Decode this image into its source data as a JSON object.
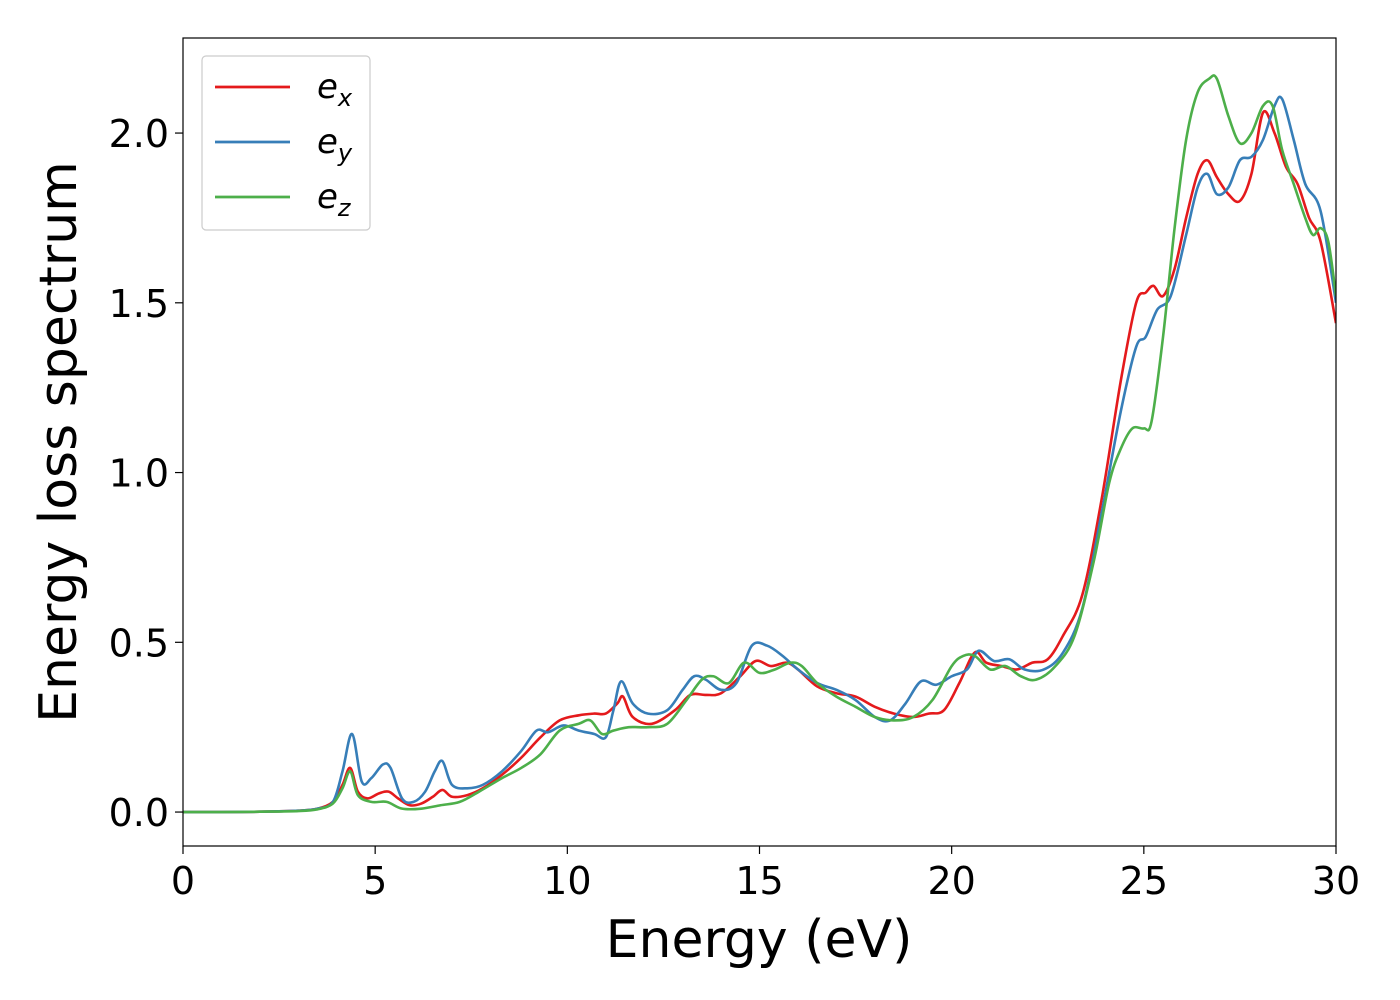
{
  "chart_data": {
    "type": "line",
    "title": "",
    "xlabel": "Energy (eV)",
    "ylabel": "Energy loss spectrum",
    "xlim": [
      0,
      30
    ],
    "ylim": [
      -0.1,
      2.28
    ],
    "xticks": [
      0,
      5,
      10,
      15,
      20,
      25,
      30
    ],
    "xtick_labels": [
      "0",
      "5",
      "10",
      "15",
      "20",
      "25",
      "30"
    ],
    "yticks": [
      0.0,
      0.5,
      1.0,
      1.5,
      2.0
    ],
    "ytick_labels": [
      "0.0",
      "0.5",
      "1.0",
      "1.5",
      "2.0"
    ],
    "grid": false,
    "legend_position": "top-left",
    "series": [
      {
        "name": "e",
        "subscript": "x",
        "color": "#e41a1c",
        "points": [
          [
            0,
            0.0
          ],
          [
            1,
            0.0
          ],
          [
            2,
            0.001
          ],
          [
            3,
            0.004
          ],
          [
            3.5,
            0.01
          ],
          [
            3.9,
            0.03
          ],
          [
            4.15,
            0.08
          ],
          [
            4.35,
            0.13
          ],
          [
            4.55,
            0.06
          ],
          [
            4.8,
            0.04
          ],
          [
            5.1,
            0.055
          ],
          [
            5.35,
            0.06
          ],
          [
            5.6,
            0.04
          ],
          [
            5.9,
            0.02
          ],
          [
            6.2,
            0.025
          ],
          [
            6.5,
            0.045
          ],
          [
            6.75,
            0.065
          ],
          [
            7.0,
            0.045
          ],
          [
            7.4,
            0.05
          ],
          [
            7.8,
            0.07
          ],
          [
            8.3,
            0.11
          ],
          [
            8.8,
            0.16
          ],
          [
            9.3,
            0.22
          ],
          [
            9.8,
            0.27
          ],
          [
            10.3,
            0.285
          ],
          [
            10.7,
            0.29
          ],
          [
            11.0,
            0.29
          ],
          [
            11.3,
            0.32
          ],
          [
            11.45,
            0.34
          ],
          [
            11.7,
            0.28
          ],
          [
            12.2,
            0.26
          ],
          [
            12.8,
            0.3
          ],
          [
            13.2,
            0.345
          ],
          [
            13.6,
            0.345
          ],
          [
            14.0,
            0.35
          ],
          [
            14.5,
            0.4
          ],
          [
            14.9,
            0.445
          ],
          [
            15.3,
            0.43
          ],
          [
            15.7,
            0.44
          ],
          [
            16.0,
            0.42
          ],
          [
            16.5,
            0.37
          ],
          [
            17.0,
            0.35
          ],
          [
            17.5,
            0.34
          ],
          [
            18.0,
            0.31
          ],
          [
            18.5,
            0.29
          ],
          [
            19.0,
            0.28
          ],
          [
            19.4,
            0.29
          ],
          [
            19.8,
            0.3
          ],
          [
            20.2,
            0.38
          ],
          [
            20.6,
            0.47
          ],
          [
            20.9,
            0.44
          ],
          [
            21.3,
            0.43
          ],
          [
            21.7,
            0.42
          ],
          [
            22.1,
            0.44
          ],
          [
            22.5,
            0.45
          ],
          [
            22.9,
            0.52
          ],
          [
            23.4,
            0.64
          ],
          [
            23.9,
            0.92
          ],
          [
            24.4,
            1.27
          ],
          [
            24.8,
            1.5
          ],
          [
            25.05,
            1.53
          ],
          [
            25.25,
            1.55
          ],
          [
            25.5,
            1.52
          ],
          [
            25.8,
            1.6
          ],
          [
            26.1,
            1.75
          ],
          [
            26.4,
            1.88
          ],
          [
            26.65,
            1.92
          ],
          [
            26.9,
            1.87
          ],
          [
            27.2,
            1.82
          ],
          [
            27.5,
            1.8
          ],
          [
            27.8,
            1.88
          ],
          [
            28.1,
            2.06
          ],
          [
            28.4,
            2.0
          ],
          [
            28.7,
            1.9
          ],
          [
            29.0,
            1.85
          ],
          [
            29.3,
            1.75
          ],
          [
            29.6,
            1.68
          ],
          [
            30.0,
            1.44
          ]
        ]
      },
      {
        "name": "e",
        "subscript": "y",
        "color": "#377eb8",
        "points": [
          [
            0,
            0.0
          ],
          [
            1,
            0.0
          ],
          [
            2,
            0.001
          ],
          [
            3,
            0.004
          ],
          [
            3.5,
            0.01
          ],
          [
            3.9,
            0.03
          ],
          [
            4.15,
            0.12
          ],
          [
            4.4,
            0.23
          ],
          [
            4.65,
            0.09
          ],
          [
            4.9,
            0.1
          ],
          [
            5.2,
            0.14
          ],
          [
            5.4,
            0.13
          ],
          [
            5.7,
            0.04
          ],
          [
            6.0,
            0.03
          ],
          [
            6.3,
            0.06
          ],
          [
            6.55,
            0.12
          ],
          [
            6.75,
            0.15
          ],
          [
            7.0,
            0.08
          ],
          [
            7.4,
            0.07
          ],
          [
            7.8,
            0.08
          ],
          [
            8.3,
            0.12
          ],
          [
            8.8,
            0.18
          ],
          [
            9.2,
            0.24
          ],
          [
            9.5,
            0.235
          ],
          [
            9.9,
            0.255
          ],
          [
            10.3,
            0.24
          ],
          [
            10.7,
            0.23
          ],
          [
            11.0,
            0.22
          ],
          [
            11.2,
            0.3
          ],
          [
            11.4,
            0.385
          ],
          [
            11.7,
            0.32
          ],
          [
            12.1,
            0.29
          ],
          [
            12.6,
            0.3
          ],
          [
            13.0,
            0.36
          ],
          [
            13.3,
            0.4
          ],
          [
            13.6,
            0.39
          ],
          [
            14.0,
            0.36
          ],
          [
            14.4,
            0.38
          ],
          [
            14.8,
            0.49
          ],
          [
            15.2,
            0.49
          ],
          [
            15.6,
            0.46
          ],
          [
            16.0,
            0.42
          ],
          [
            16.5,
            0.38
          ],
          [
            17.0,
            0.36
          ],
          [
            17.5,
            0.33
          ],
          [
            18.0,
            0.28
          ],
          [
            18.4,
            0.27
          ],
          [
            18.8,
            0.32
          ],
          [
            19.2,
            0.385
          ],
          [
            19.6,
            0.375
          ],
          [
            20.0,
            0.4
          ],
          [
            20.4,
            0.42
          ],
          [
            20.7,
            0.475
          ],
          [
            21.1,
            0.445
          ],
          [
            21.5,
            0.45
          ],
          [
            21.9,
            0.42
          ],
          [
            22.4,
            0.42
          ],
          [
            22.9,
            0.47
          ],
          [
            23.4,
            0.6
          ],
          [
            23.9,
            0.88
          ],
          [
            24.4,
            1.18
          ],
          [
            24.8,
            1.37
          ],
          [
            25.05,
            1.4
          ],
          [
            25.35,
            1.48
          ],
          [
            25.7,
            1.52
          ],
          [
            26.1,
            1.7
          ],
          [
            26.4,
            1.84
          ],
          [
            26.65,
            1.88
          ],
          [
            26.9,
            1.82
          ],
          [
            27.2,
            1.84
          ],
          [
            27.5,
            1.92
          ],
          [
            27.8,
            1.93
          ],
          [
            28.1,
            1.98
          ],
          [
            28.4,
            2.08
          ],
          [
            28.6,
            2.1
          ],
          [
            28.9,
            1.98
          ],
          [
            29.2,
            1.85
          ],
          [
            29.6,
            1.77
          ],
          [
            30.0,
            1.5
          ]
        ]
      },
      {
        "name": "e",
        "subscript": "z",
        "color": "#4daf4a",
        "points": [
          [
            0,
            0.0
          ],
          [
            1,
            0.0
          ],
          [
            2,
            0.001
          ],
          [
            3,
            0.003
          ],
          [
            3.5,
            0.008
          ],
          [
            3.9,
            0.025
          ],
          [
            4.15,
            0.07
          ],
          [
            4.35,
            0.12
          ],
          [
            4.55,
            0.05
          ],
          [
            4.9,
            0.03
          ],
          [
            5.3,
            0.03
          ],
          [
            5.7,
            0.01
          ],
          [
            6.2,
            0.01
          ],
          [
            6.7,
            0.02
          ],
          [
            7.2,
            0.03
          ],
          [
            7.7,
            0.06
          ],
          [
            8.3,
            0.1
          ],
          [
            8.8,
            0.13
          ],
          [
            9.3,
            0.17
          ],
          [
            9.8,
            0.24
          ],
          [
            10.3,
            0.26
          ],
          [
            10.6,
            0.27
          ],
          [
            10.9,
            0.23
          ],
          [
            11.2,
            0.24
          ],
          [
            11.6,
            0.25
          ],
          [
            12.1,
            0.25
          ],
          [
            12.6,
            0.26
          ],
          [
            13.1,
            0.33
          ],
          [
            13.5,
            0.39
          ],
          [
            13.8,
            0.4
          ],
          [
            14.2,
            0.38
          ],
          [
            14.6,
            0.44
          ],
          [
            15.0,
            0.41
          ],
          [
            15.4,
            0.42
          ],
          [
            15.8,
            0.44
          ],
          [
            16.1,
            0.43
          ],
          [
            16.5,
            0.38
          ],
          [
            17.0,
            0.34
          ],
          [
            17.5,
            0.31
          ],
          [
            18.0,
            0.28
          ],
          [
            18.5,
            0.27
          ],
          [
            19.0,
            0.28
          ],
          [
            19.5,
            0.33
          ],
          [
            20.0,
            0.43
          ],
          [
            20.3,
            0.46
          ],
          [
            20.6,
            0.46
          ],
          [
            21.0,
            0.42
          ],
          [
            21.4,
            0.43
          ],
          [
            21.8,
            0.4
          ],
          [
            22.2,
            0.39
          ],
          [
            22.7,
            0.43
          ],
          [
            23.2,
            0.52
          ],
          [
            23.7,
            0.74
          ],
          [
            24.1,
            0.97
          ],
          [
            24.4,
            1.07
          ],
          [
            24.7,
            1.13
          ],
          [
            25.0,
            1.13
          ],
          [
            25.2,
            1.15
          ],
          [
            25.5,
            1.4
          ],
          [
            25.8,
            1.72
          ],
          [
            26.1,
            1.98
          ],
          [
            26.4,
            2.12
          ],
          [
            26.7,
            2.16
          ],
          [
            26.9,
            2.16
          ],
          [
            27.2,
            2.05
          ],
          [
            27.5,
            1.97
          ],
          [
            27.8,
            2.0
          ],
          [
            28.1,
            2.08
          ],
          [
            28.35,
            2.08
          ],
          [
            28.6,
            1.95
          ],
          [
            28.9,
            1.85
          ],
          [
            29.2,
            1.75
          ],
          [
            29.4,
            1.7
          ],
          [
            29.6,
            1.72
          ],
          [
            29.8,
            1.68
          ],
          [
            30.0,
            1.52
          ]
        ]
      }
    ]
  }
}
